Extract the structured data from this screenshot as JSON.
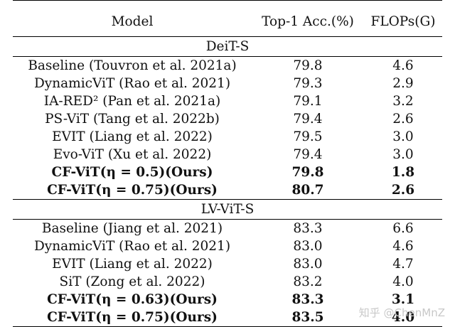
{
  "table": {
    "headers": [
      "Model",
      "Top-1 Acc.(%)",
      "FLOPs(G)"
    ],
    "sections": [
      {
        "title": "DeiT-S",
        "rows": [
          {
            "model": "Baseline (Touvron et al. 2021a)",
            "acc": "79.8",
            "flops": "4.6"
          },
          {
            "model": "DynamicViT (Rao et al. 2021)",
            "acc": "79.3",
            "flops": "2.9"
          },
          {
            "model": "IA-RED² (Pan et al. 2021a)",
            "acc": "79.1",
            "flops": "3.2"
          },
          {
            "model": "PS-ViT (Tang et al. 2022b)",
            "acc": "79.4",
            "flops": "2.6"
          },
          {
            "model": "EVIT (Liang et al. 2022)",
            "acc": "79.5",
            "flops": "3.0"
          },
          {
            "model": "Evo-ViT (Xu et al. 2022)",
            "acc": "79.4",
            "flops": "3.0"
          },
          {
            "model": "CF-ViT(η = 0.5)(Ours)",
            "acc": "79.8",
            "flops": "1.8",
            "bold": true
          },
          {
            "model": "CF-ViT(η = 0.75)(Ours)",
            "acc": "80.7",
            "flops": "2.6",
            "bold": true
          }
        ]
      },
      {
        "title": "LV-ViT-S",
        "rows": [
          {
            "model": "Baseline (Jiang et al. 2021)",
            "acc": "83.3",
            "flops": "6.6"
          },
          {
            "model": "DynamicViT (Rao et al. 2021)",
            "acc": "83.0",
            "flops": "4.6"
          },
          {
            "model": "EVIT (Liang et al. 2022)",
            "acc": "83.0",
            "flops": "4.7"
          },
          {
            "model": "SiT (Zong et al. 2022)",
            "acc": "83.2",
            "flops": "4.0"
          },
          {
            "model": "CF-ViT(η = 0.63)(Ours)",
            "acc": "83.3",
            "flops": "3.1",
            "bold": true
          },
          {
            "model": "CF-ViT(η = 0.75)(Ours)",
            "acc": "83.5",
            "flops": "4.0",
            "bold": true
          }
        ]
      }
    ]
  },
  "watermark": "知乎 @ChenMnZ"
}
